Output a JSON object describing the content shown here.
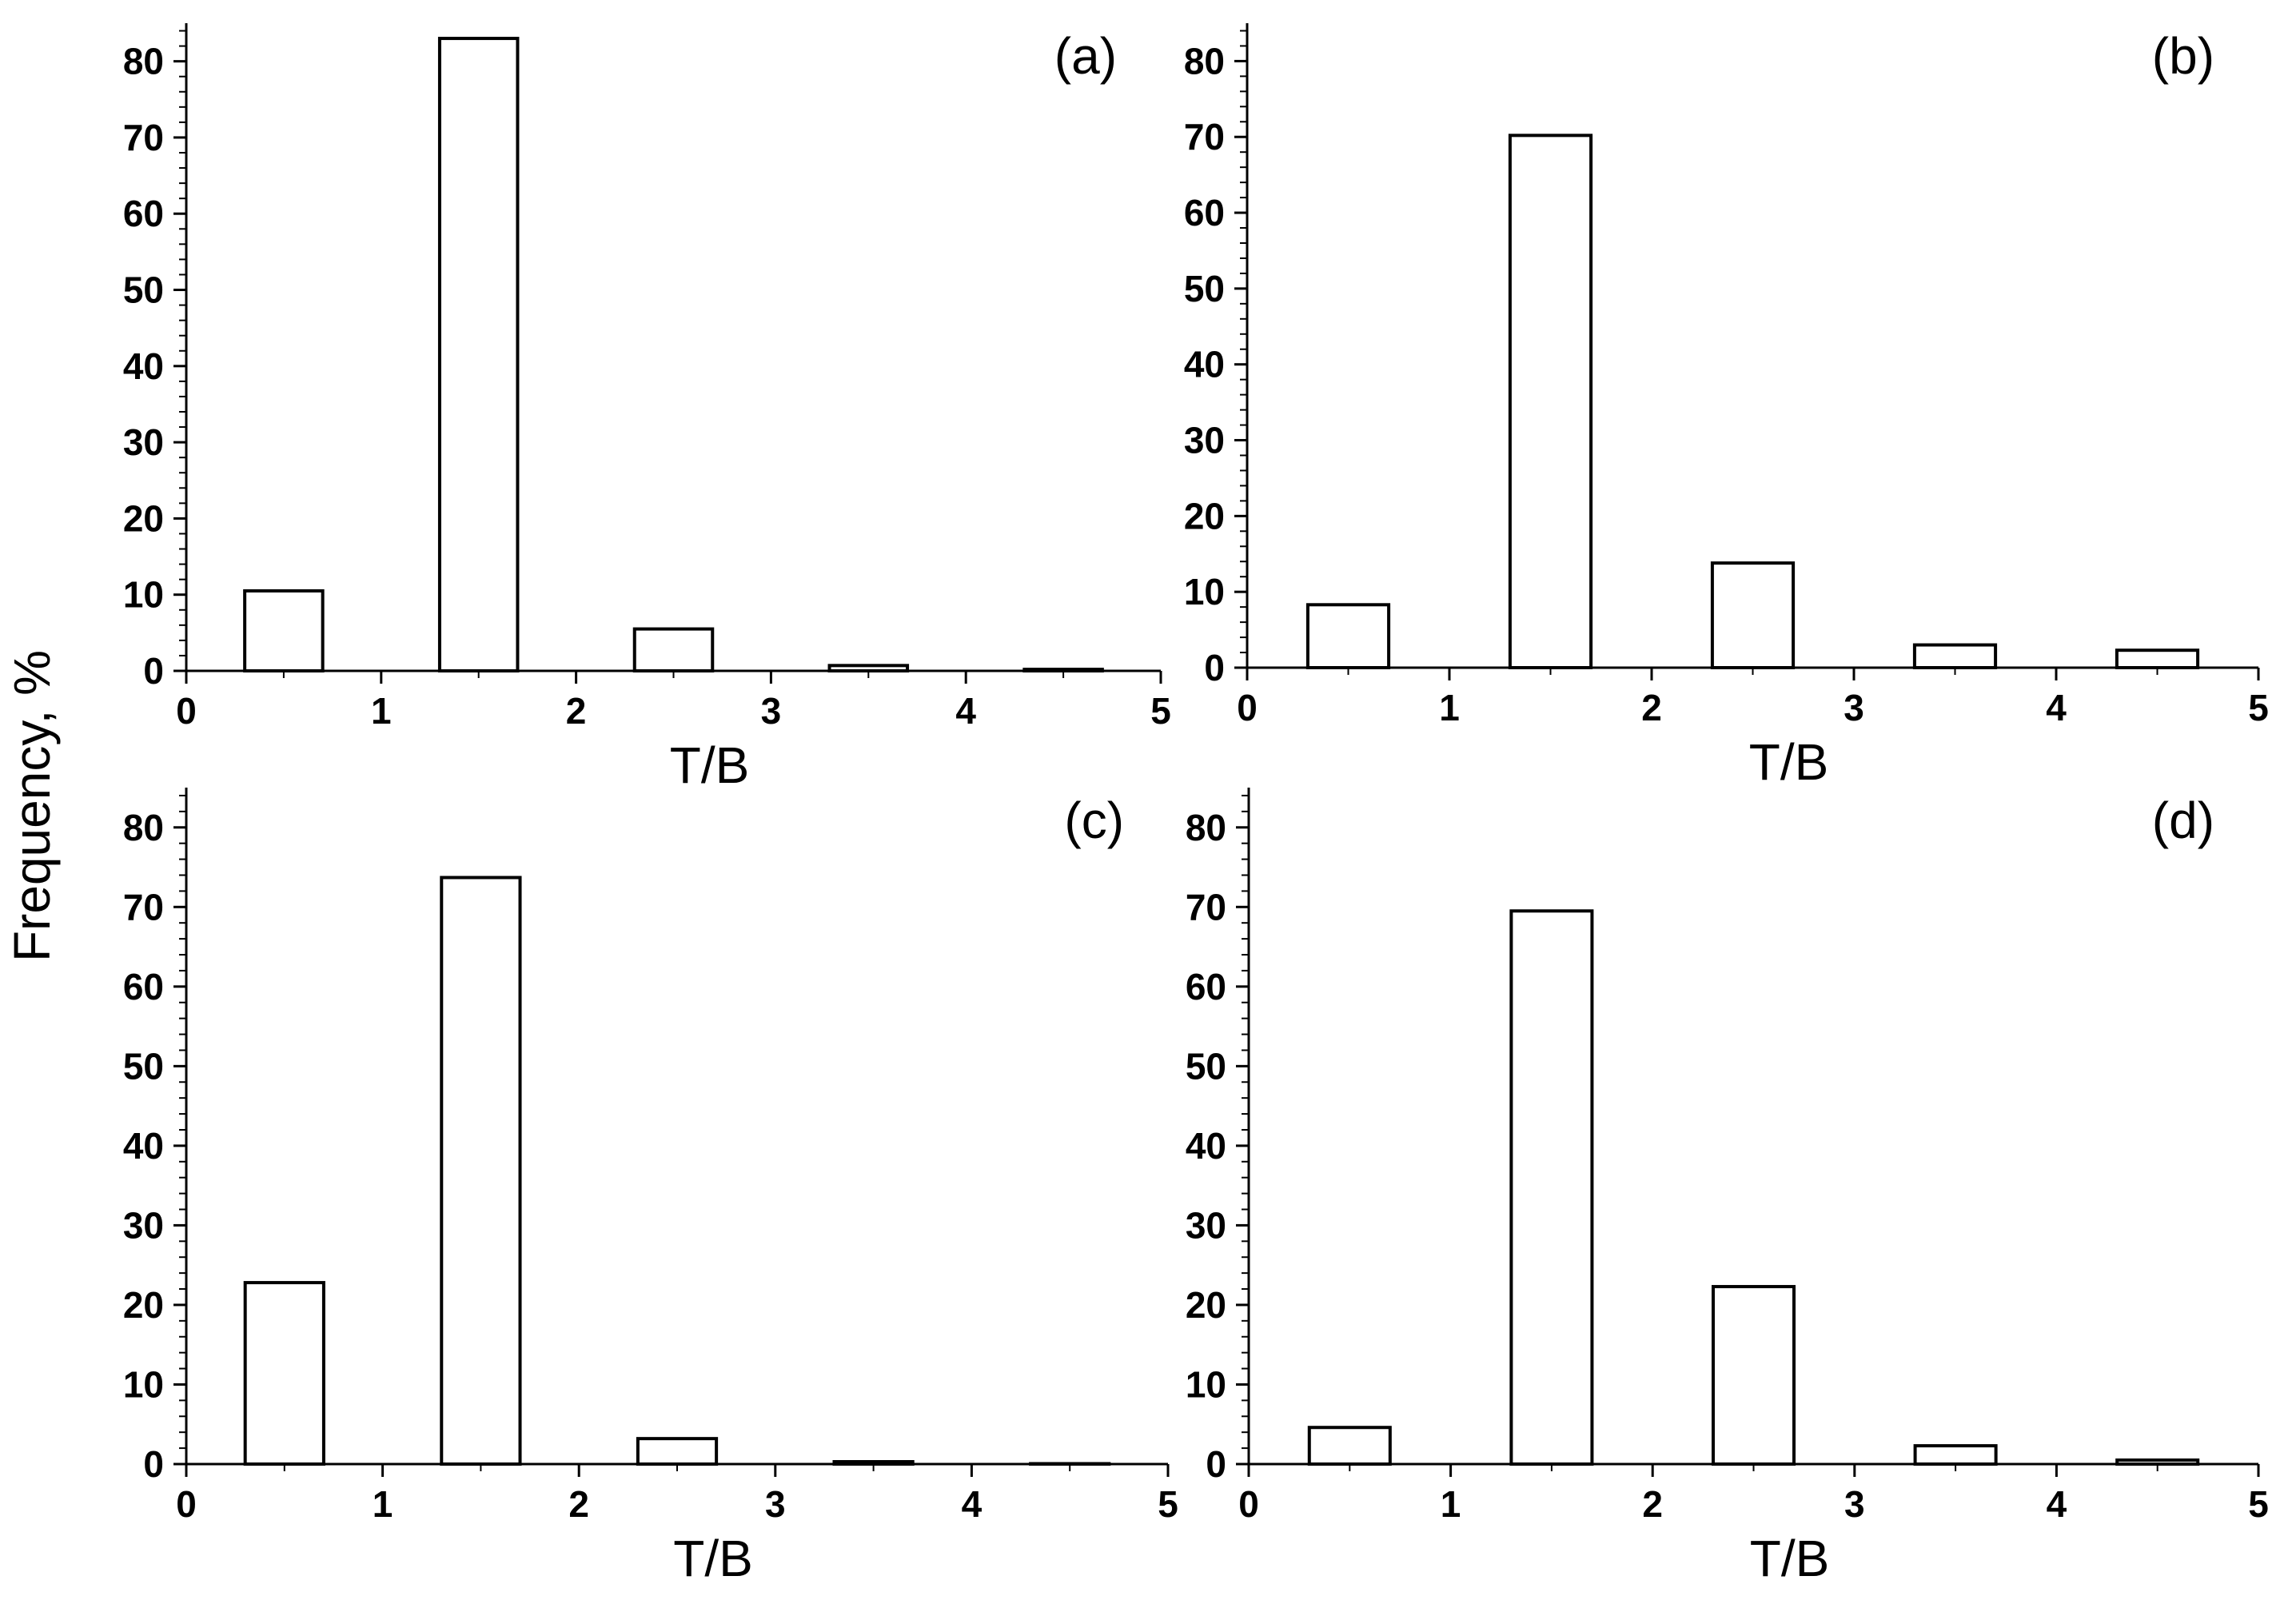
{
  "figure": {
    "shared_ylabel": "Frequency, %"
  },
  "chart_data": [
    {
      "type": "bar",
      "panel_label": "(a)",
      "xlabel": "T/B",
      "ylabel": "Frequency, %",
      "xlim": [
        0,
        5
      ],
      "ylim": [
        0,
        85
      ],
      "xticks": [
        0,
        1,
        2,
        3,
        4,
        5
      ],
      "yticks": [
        0,
        10,
        20,
        30,
        40,
        50,
        60,
        70,
        80
      ],
      "bins": [
        [
          0.3,
          0.7
        ],
        [
          1.3,
          1.7
        ],
        [
          2.3,
          2.7
        ],
        [
          3.3,
          3.7
        ],
        [
          4.3,
          4.7
        ]
      ],
      "x": [
        0.5,
        1.5,
        2.5,
        3.5,
        4.5
      ],
      "values": [
        10.5,
        83,
        5.5,
        0.7,
        0.2
      ]
    },
    {
      "type": "bar",
      "panel_label": "(b)",
      "xlabel": "T/B",
      "ylabel": "Frequency, %",
      "xlim": [
        0,
        5
      ],
      "ylim": [
        0,
        85
      ],
      "xticks": [
        0,
        1,
        2,
        3,
        4,
        5
      ],
      "yticks": [
        0,
        10,
        20,
        30,
        40,
        50,
        60,
        70,
        80
      ],
      "bins": [
        [
          0.3,
          0.7
        ],
        [
          1.3,
          1.7
        ],
        [
          2.3,
          2.7
        ],
        [
          3.3,
          3.7
        ],
        [
          4.3,
          4.7
        ]
      ],
      "x": [
        0.5,
        1.5,
        2.5,
        3.5,
        4.5
      ],
      "values": [
        8.3,
        70.2,
        13.8,
        3.0,
        2.3
      ]
    },
    {
      "type": "bar",
      "panel_label": "(c)",
      "xlabel": "T/B",
      "ylabel": "Frequency, %",
      "xlim": [
        0,
        5
      ],
      "ylim": [
        0,
        85
      ],
      "xticks": [
        0,
        1,
        2,
        3,
        4,
        5
      ],
      "yticks": [
        0,
        10,
        20,
        30,
        40,
        50,
        60,
        70,
        80
      ],
      "bins": [
        [
          0.3,
          0.7
        ],
        [
          1.3,
          1.7
        ],
        [
          2.3,
          2.7
        ],
        [
          3.3,
          3.7
        ],
        [
          4.3,
          4.7
        ]
      ],
      "x": [
        0.5,
        1.5,
        2.5,
        3.5,
        4.5
      ],
      "values": [
        22.8,
        73.7,
        3.2,
        0.3,
        0.05
      ]
    },
    {
      "type": "bar",
      "panel_label": "(d)",
      "xlabel": "T/B",
      "ylabel": "Frequency, %",
      "xlim": [
        0,
        5
      ],
      "ylim": [
        0,
        85
      ],
      "xticks": [
        0,
        1,
        2,
        3,
        4,
        5
      ],
      "yticks": [
        0,
        10,
        20,
        30,
        40,
        50,
        60,
        70,
        80
      ],
      "bins": [
        [
          0.3,
          0.7
        ],
        [
          1.3,
          1.7
        ],
        [
          2.3,
          2.7
        ],
        [
          3.3,
          3.7
        ],
        [
          4.3,
          4.7
        ]
      ],
      "x": [
        0.5,
        1.5,
        2.5,
        3.5,
        4.5
      ],
      "values": [
        4.6,
        69.5,
        22.3,
        2.3,
        0.5
      ]
    }
  ]
}
